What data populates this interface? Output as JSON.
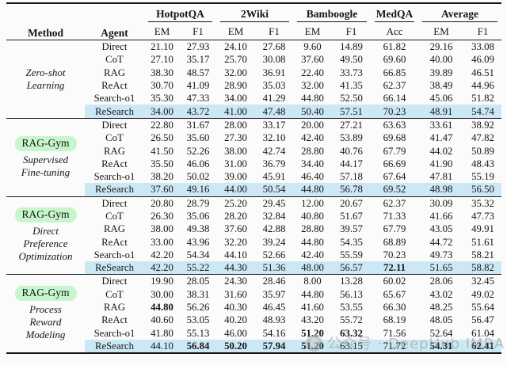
{
  "header": {
    "method": "Method",
    "agent": "Agent",
    "groups": [
      {
        "label": "HotpotQA",
        "cols": [
          "EM",
          "F1"
        ]
      },
      {
        "label": "2Wiki",
        "cols": [
          "EM",
          "F1"
        ]
      },
      {
        "label": "Bamboogle",
        "cols": [
          "EM",
          "F1"
        ]
      },
      {
        "label": "MedQA",
        "cols": [
          "Acc"
        ]
      },
      {
        "label": "Average",
        "cols": [
          "EM",
          "F1"
        ]
      }
    ]
  },
  "blocks": [
    {
      "method_pill": null,
      "method_label": "Zero-shot\nLearning",
      "rows": [
        {
          "agent": "Direct",
          "highlight": false,
          "bold": [],
          "values": [
            "21.10",
            "27.93",
            "24.10",
            "27.68",
            "9.60",
            "14.89",
            "61.82",
            "29.16",
            "33.08"
          ]
        },
        {
          "agent": "CoT",
          "highlight": false,
          "bold": [],
          "values": [
            "27.10",
            "35.17",
            "25.70",
            "30.08",
            "37.60",
            "49.50",
            "69.60",
            "40.00",
            "46.09"
          ]
        },
        {
          "agent": "RAG",
          "highlight": false,
          "bold": [],
          "values": [
            "38.30",
            "48.57",
            "32.00",
            "36.91",
            "22.40",
            "33.73",
            "66.85",
            "39.89",
            "46.51"
          ]
        },
        {
          "agent": "ReAct",
          "highlight": false,
          "bold": [],
          "values": [
            "30.70",
            "41.09",
            "28.90",
            "35.03",
            "32.00",
            "41.35",
            "62.37",
            "38.49",
            "44.96"
          ]
        },
        {
          "agent": "Search-o1",
          "highlight": false,
          "bold": [],
          "values": [
            "35.30",
            "47.33",
            "34.00",
            "41.29",
            "44.80",
            "52.50",
            "66.14",
            "45.06",
            "51.82"
          ]
        },
        {
          "agent": "ReSearch",
          "highlight": true,
          "bold": [],
          "values": [
            "34.00",
            "43.72",
            "41.00",
            "47.48",
            "50.40",
            "57.51",
            "70.23",
            "48.91",
            "54.74"
          ]
        }
      ]
    },
    {
      "method_pill": "RAG-Gym",
      "method_label": "Supervised\nFine-tuning",
      "rows": [
        {
          "agent": "Direct",
          "highlight": false,
          "bold": [],
          "values": [
            "22.80",
            "31.67",
            "28.00",
            "33.17",
            "20.00",
            "27.21",
            "63.63",
            "33.61",
            "38.92"
          ]
        },
        {
          "agent": "CoT",
          "highlight": false,
          "bold": [],
          "values": [
            "26.50",
            "35.60",
            "27.30",
            "32.10",
            "42.40",
            "53.89",
            "69.68",
            "41.47",
            "47.82"
          ]
        },
        {
          "agent": "RAG",
          "highlight": false,
          "bold": [],
          "values": [
            "41.50",
            "52.26",
            "38.00",
            "42.74",
            "28.80",
            "40.76",
            "67.79",
            "44.02",
            "50.89"
          ]
        },
        {
          "agent": "ReAct",
          "highlight": false,
          "bold": [],
          "values": [
            "35.50",
            "46.06",
            "31.00",
            "36.79",
            "34.40",
            "44.17",
            "66.69",
            "41.90",
            "48.43"
          ]
        },
        {
          "agent": "Search-o1",
          "highlight": false,
          "bold": [],
          "values": [
            "38.20",
            "50.02",
            "39.00",
            "45.91",
            "46.40",
            "57.18",
            "67.64",
            "47.81",
            "55.19"
          ]
        },
        {
          "agent": "ReSearch",
          "highlight": true,
          "bold": [],
          "values": [
            "37.60",
            "49.16",
            "44.00",
            "50.54",
            "44.80",
            "56.78",
            "69.52",
            "48.98",
            "56.50"
          ]
        }
      ]
    },
    {
      "method_pill": "RAG-Gym",
      "method_label": "Direct\nPreference\nOptimization",
      "rows": [
        {
          "agent": "Direct",
          "highlight": false,
          "bold": [],
          "values": [
            "20.80",
            "28.79",
            "25.20",
            "29.45",
            "12.00",
            "20.67",
            "62.37",
            "30.09",
            "35.32"
          ]
        },
        {
          "agent": "CoT",
          "highlight": false,
          "bold": [],
          "values": [
            "26.30",
            "35.06",
            "28.20",
            "32.84",
            "40.80",
            "51.67",
            "71.33",
            "41.66",
            "47.73"
          ]
        },
        {
          "agent": "RAG",
          "highlight": false,
          "bold": [],
          "values": [
            "38.00",
            "49.38",
            "37.60",
            "42.88",
            "28.80",
            "39.57",
            "67.79",
            "43.05",
            "49.91"
          ]
        },
        {
          "agent": "ReAct",
          "highlight": false,
          "bold": [],
          "values": [
            "33.00",
            "43.96",
            "32.20",
            "39.24",
            "44.80",
            "54.35",
            "68.89",
            "44.72",
            "51.61"
          ]
        },
        {
          "agent": "Search-o1",
          "highlight": false,
          "bold": [],
          "values": [
            "42.20",
            "54.34",
            "44.10",
            "52.66",
            "42.40",
            "55.59",
            "70.23",
            "49.73",
            "58.21"
          ]
        },
        {
          "agent": "ReSearch",
          "highlight": true,
          "bold": [
            6
          ],
          "values": [
            "42.20",
            "55.22",
            "44.30",
            "51.36",
            "48.00",
            "56.57",
            "72.11",
            "51.65",
            "58.82"
          ]
        }
      ]
    },
    {
      "method_pill": "RAG-Gym",
      "method_label": "Process\nReward\nModeling",
      "rows": [
        {
          "agent": "Direct",
          "highlight": false,
          "bold": [],
          "values": [
            "19.90",
            "28.05",
            "24.30",
            "28.46",
            "8.00",
            "13.28",
            "60.02",
            "28.06",
            "32.45"
          ]
        },
        {
          "agent": "CoT",
          "highlight": false,
          "bold": [],
          "values": [
            "30.00",
            "38.31",
            "31.60",
            "35.97",
            "44.80",
            "56.13",
            "65.67",
            "43.02",
            "49.02"
          ]
        },
        {
          "agent": "RAG",
          "highlight": false,
          "bold": [
            0
          ],
          "values": [
            "44.80",
            "56.26",
            "40.30",
            "46.45",
            "41.60",
            "53.55",
            "66.30",
            "48.25",
            "55.64"
          ]
        },
        {
          "agent": "ReAct",
          "highlight": false,
          "bold": [],
          "values": [
            "40.60",
            "53.05",
            "40.20",
            "48.93",
            "43.20",
            "55.72",
            "68.19",
            "48.05",
            "56.47"
          ]
        },
        {
          "agent": "Search-o1",
          "highlight": false,
          "bold": [
            4,
            5
          ],
          "values": [
            "41.80",
            "55.13",
            "46.00",
            "54.16",
            "51.20",
            "63.32",
            "71.56",
            "52.64",
            "61.04"
          ]
        },
        {
          "agent": "ReSearch",
          "highlight": true,
          "bold": [
            1,
            2,
            3,
            4,
            7,
            8
          ],
          "values": [
            "44.10",
            "56.84",
            "50.20",
            "57.94",
            "51.20",
            "63.15",
            "71.72",
            "54.31",
            "62.41"
          ]
        }
      ]
    }
  ],
  "watermark": {
    "text": "公众号 · DeepHub IMBA"
  },
  "colors": {
    "highlight_row": "#cde8f5",
    "method_pill": "#c7f6cc"
  }
}
